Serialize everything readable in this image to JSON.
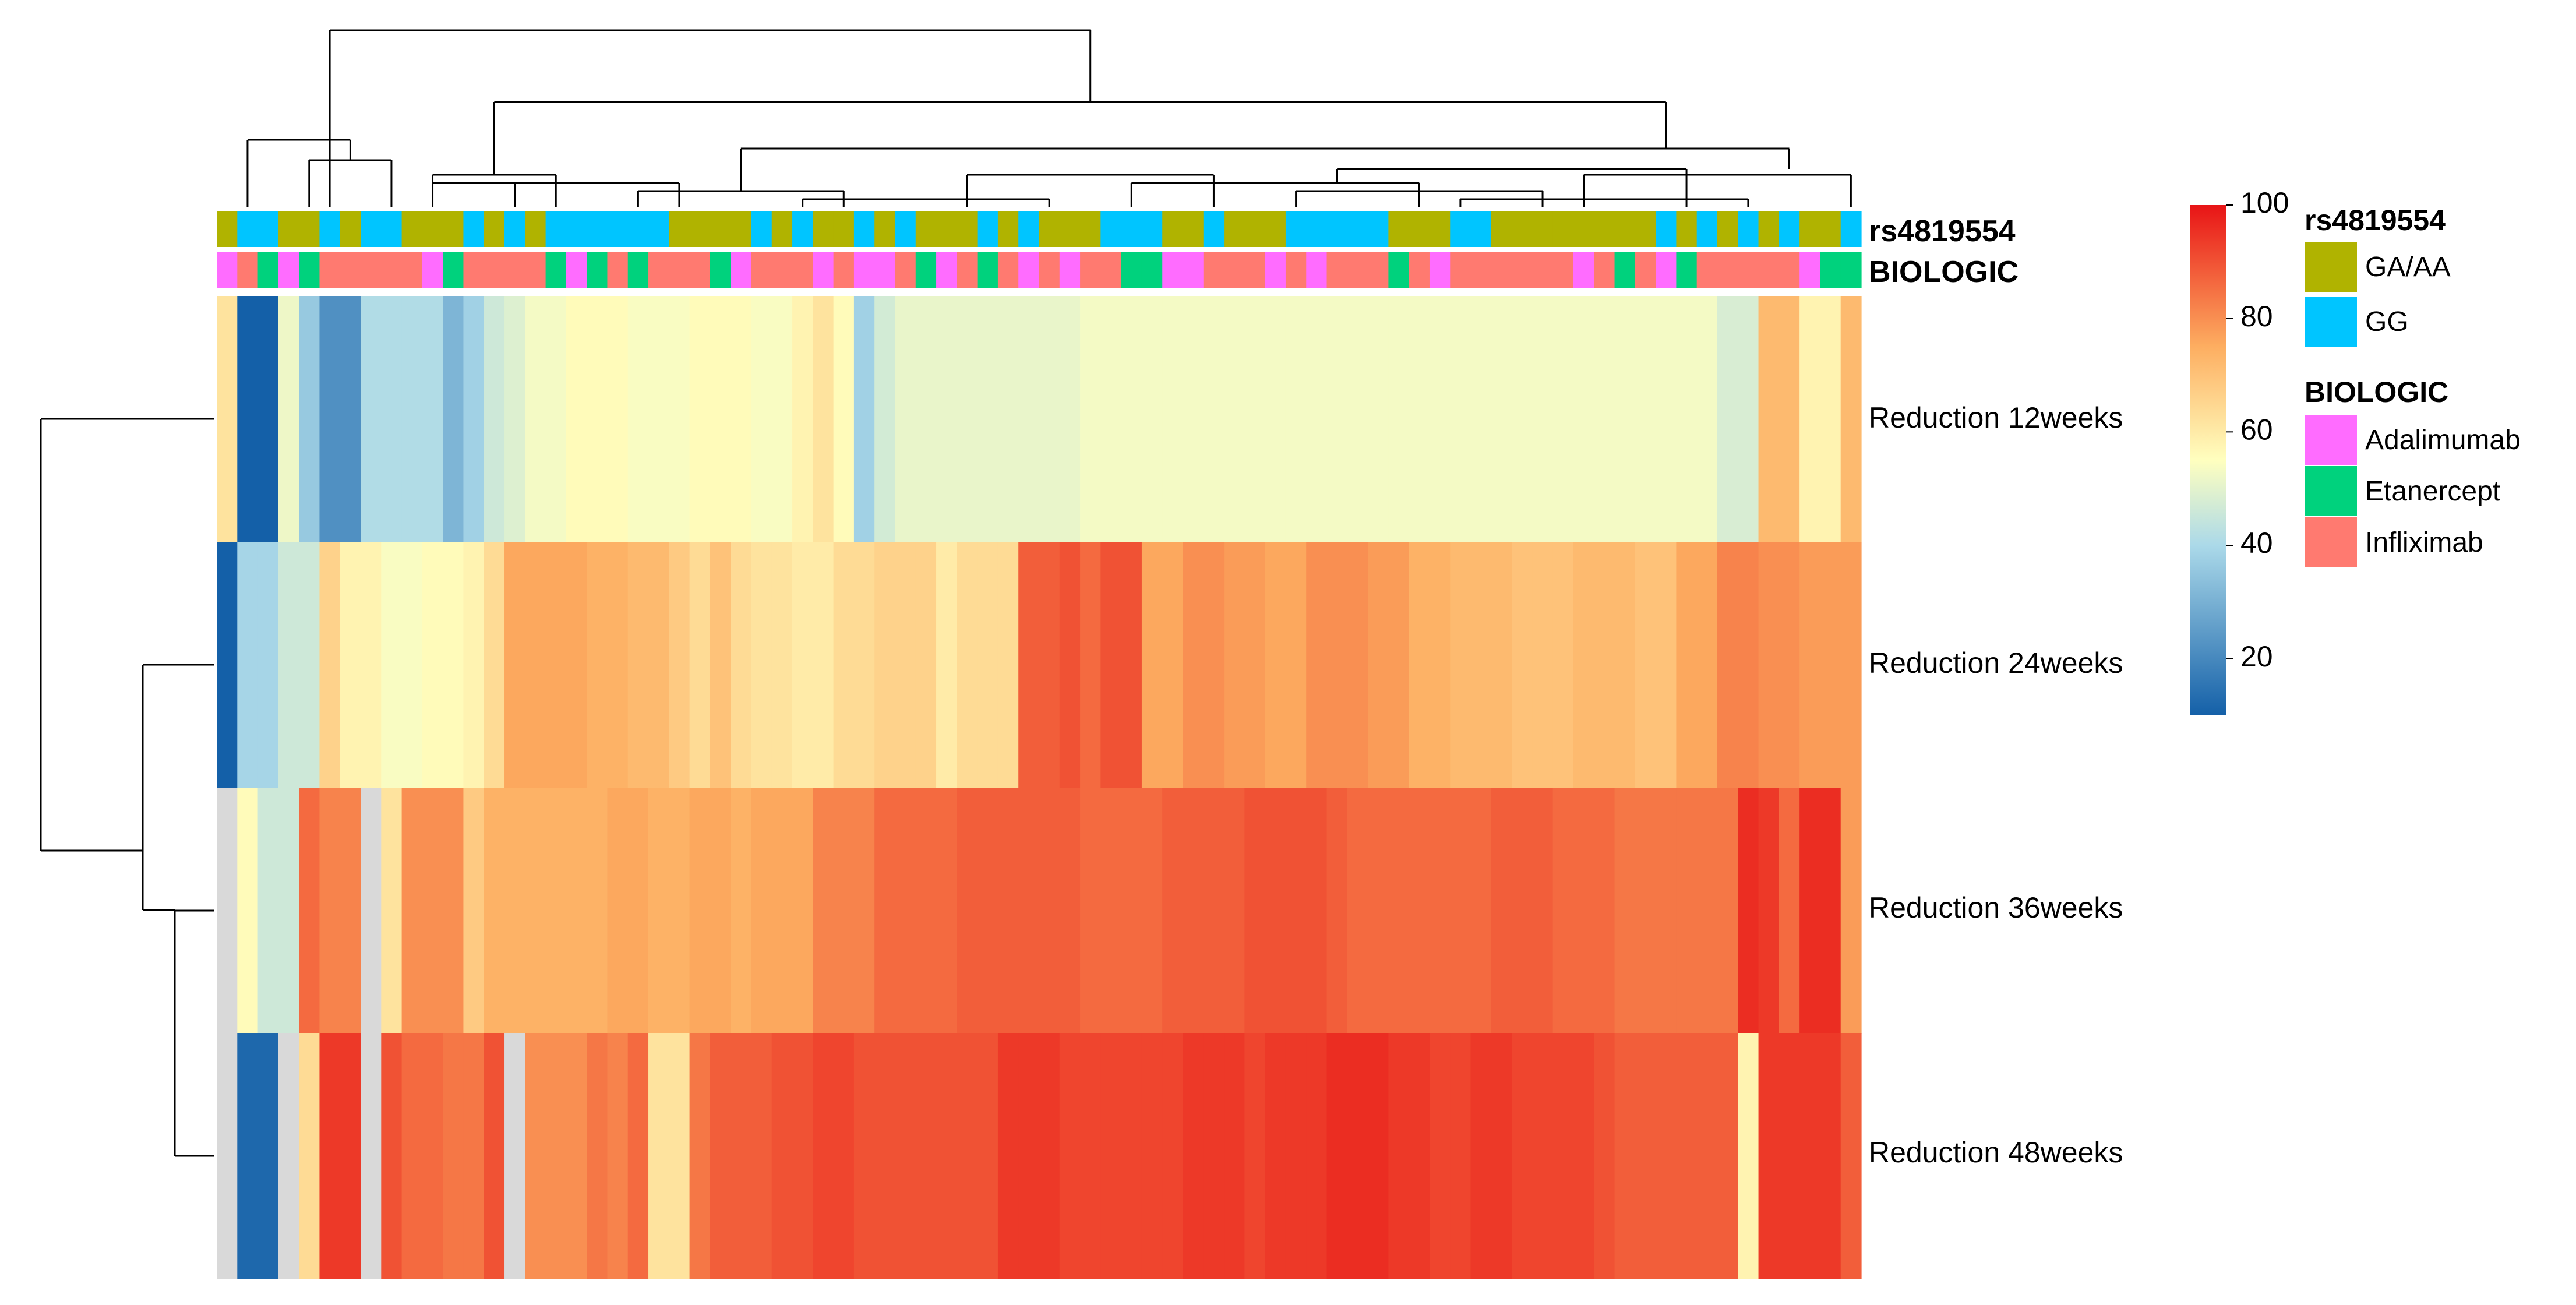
{
  "chart_data": {
    "type": "heatmap",
    "title": "",
    "rows": [
      "Reduction 12weeks",
      "Reduction 24weeks",
      "Reduction 36weeks",
      "Reduction 48weeks"
    ],
    "n_columns": 80,
    "na_color": "#d9d9d9",
    "values": [
      [
        62,
        10,
        10,
        52,
        36,
        22,
        22,
        41,
        41,
        41,
        41,
        31,
        38,
        46,
        49,
        53,
        53,
        56,
        56,
        56,
        54,
        54,
        54,
        56,
        56,
        56,
        54,
        54,
        58,
        62,
        56,
        38,
        47,
        51,
        51,
        51,
        51,
        51,
        51,
        51,
        51,
        51,
        53,
        53,
        53,
        53,
        53,
        53,
        53,
        53,
        53,
        53,
        53,
        53,
        53,
        53,
        53,
        53,
        53,
        53,
        53,
        53,
        53,
        53,
        53,
        53,
        53,
        53,
        53,
        53,
        53,
        53,
        53,
        48,
        48,
        72,
        72,
        58,
        58,
        72
      ],
      [
        6,
        39,
        39,
        46,
        46,
        66,
        58,
        58,
        54,
        54,
        56,
        56,
        58,
        64,
        76,
        76,
        76,
        76,
        74,
        74,
        72,
        72,
        68,
        64,
        70,
        64,
        62,
        62,
        60,
        60,
        64,
        64,
        66,
        66,
        66,
        60,
        64,
        64,
        64,
        88,
        88,
        90,
        86,
        90,
        90,
        76,
        76,
        80,
        80,
        78,
        78,
        76,
        76,
        80,
        80,
        80,
        78,
        78,
        74,
        74,
        72,
        72,
        72,
        70,
        70,
        70,
        72,
        72,
        72,
        70,
        70,
        76,
        76,
        82,
        82,
        80,
        80,
        78,
        78,
        78
      ],
      [
        null,
        56,
        46,
        46,
        86,
        82,
        82,
        null,
        62,
        80,
        80,
        80,
        68,
        74,
        74,
        74,
        74,
        74,
        74,
        76,
        76,
        74,
        74,
        76,
        76,
        74,
        76,
        76,
        76,
        82,
        82,
        82,
        86,
        86,
        86,
        86,
        88,
        88,
        88,
        88,
        88,
        88,
        86,
        86,
        86,
        86,
        88,
        88,
        88,
        88,
        90,
        90,
        90,
        90,
        88,
        86,
        86,
        86,
        86,
        86,
        86,
        86,
        88,
        88,
        88,
        86,
        86,
        86,
        84,
        84,
        84,
        84,
        84,
        84,
        96,
        94,
        86,
        96,
        96,
        78
      ],
      [
        null,
        12,
        12,
        null,
        64,
        94,
        94,
        null,
        90,
        86,
        86,
        84,
        84,
        90,
        null,
        80,
        80,
        80,
        84,
        82,
        86,
        62,
        62,
        84,
        88,
        88,
        88,
        90,
        90,
        92,
        92,
        90,
        90,
        90,
        90,
        90,
        90,
        90,
        94,
        94,
        94,
        92,
        92,
        92,
        92,
        92,
        92,
        94,
        94,
        94,
        92,
        94,
        94,
        94,
        96,
        96,
        96,
        94,
        94,
        92,
        92,
        94,
        94,
        92,
        92,
        92,
        92,
        90,
        88,
        88,
        88,
        88,
        88,
        88,
        58,
        94,
        94,
        94,
        94,
        88
      ]
    ],
    "annotations": {
      "rs4819554": [
        "GA/AA",
        "GG",
        "GG",
        "GA/AA",
        "GA/AA",
        "GG",
        "GA/AA",
        "GG",
        "GG",
        "GA/AA",
        "GA/AA",
        "GA/AA",
        "GG",
        "GA/AA",
        "GG",
        "GA/AA",
        "GG",
        "GG",
        "GG",
        "GG",
        "GG",
        "GG",
        "GA/AA",
        "GA/AA",
        "GA/AA",
        "GA/AA",
        "GG",
        "GA/AA",
        "GG",
        "GA/AA",
        "GA/AA",
        "GG",
        "GA/AA",
        "GG",
        "GA/AA",
        "GA/AA",
        "GA/AA",
        "GG",
        "GA/AA",
        "GG",
        "GA/AA",
        "GA/AA",
        "GA/AA",
        "GG",
        "GG",
        "GG",
        "GA/AA",
        "GA/AA",
        "GG",
        "GA/AA",
        "GA/AA",
        "GA/AA",
        "GG",
        "GG",
        "GG",
        "GG",
        "GG",
        "GA/AA",
        "GA/AA",
        "GA/AA",
        "GG",
        "GG",
        "GA/AA",
        "GA/AA",
        "GA/AA",
        "GA/AA",
        "GA/AA",
        "GA/AA",
        "GA/AA",
        "GA/AA",
        "GG",
        "GA/AA",
        "GG",
        "GA/AA",
        "GG",
        "GA/AA",
        "GG",
        "GA/AA",
        "GA/AA",
        "GG"
      ],
      "BIOLOGIC": [
        "Adalimumab",
        "Infliximab",
        "Etanercept",
        "Adalimumab",
        "Etanercept",
        "Infliximab",
        "Infliximab",
        "Infliximab",
        "Infliximab",
        "Infliximab",
        "Adalimumab",
        "Etanercept",
        "Infliximab",
        "Infliximab",
        "Infliximab",
        "Infliximab",
        "Etanercept",
        "Adalimumab",
        "Etanercept",
        "Infliximab",
        "Etanercept",
        "Infliximab",
        "Infliximab",
        "Infliximab",
        "Etanercept",
        "Adalimumab",
        "Infliximab",
        "Infliximab",
        "Infliximab",
        "Adalimumab",
        "Infliximab",
        "Adalimumab",
        "Adalimumab",
        "Infliximab",
        "Etanercept",
        "Adalimumab",
        "Infliximab",
        "Etanercept",
        "Infliximab",
        "Adalimumab",
        "Infliximab",
        "Adalimumab",
        "Infliximab",
        "Infliximab",
        "Etanercept",
        "Etanercept",
        "Adalimumab",
        "Adalimumab",
        "Infliximab",
        "Infliximab",
        "Infliximab",
        "Adalimumab",
        "Infliximab",
        "Adalimumab",
        "Infliximab",
        "Infliximab",
        "Infliximab",
        "Etanercept",
        "Infliximab",
        "Adalimumab",
        "Infliximab",
        "Infliximab",
        "Infliximab",
        "Infliximab",
        "Infliximab",
        "Infliximab",
        "Adalimumab",
        "Infliximab",
        "Etanercept",
        "Infliximab",
        "Adalimumab",
        "Etanercept",
        "Infliximab",
        "Infliximab",
        "Infliximab",
        "Infliximab",
        "Infliximab",
        "Adalimumab",
        "Etanercept",
        "Etanercept"
      ]
    },
    "annotation_labels": [
      "rs4819554",
      "BIOLOGIC"
    ],
    "color_scale": {
      "min": 10,
      "max": 100,
      "ticks": [
        20,
        40,
        60,
        80,
        100
      ],
      "stops": [
        {
          "value": 10,
          "color": "#1460a8"
        },
        {
          "value": 40,
          "color": "#abd9e9"
        },
        {
          "value": 55,
          "color": "#ffffbf"
        },
        {
          "value": 75,
          "color": "#fdae61"
        },
        {
          "value": 100,
          "color": "#e81416"
        }
      ]
    },
    "legend": {
      "rs4819554": {
        "title": "rs4819554",
        "items": [
          {
            "label": "GA/AA",
            "color": "#b0b300"
          },
          {
            "label": "GG",
            "color": "#00c5ff"
          }
        ]
      },
      "BIOLOGIC": {
        "title": "BIOLOGIC",
        "items": [
          {
            "label": "Adalimumab",
            "color": "#ff6cff"
          },
          {
            "label": "Etanercept",
            "color": "#00d27d"
          },
          {
            "label": "Infliximab",
            "color": "#ff7a70"
          }
        ]
      }
    }
  }
}
